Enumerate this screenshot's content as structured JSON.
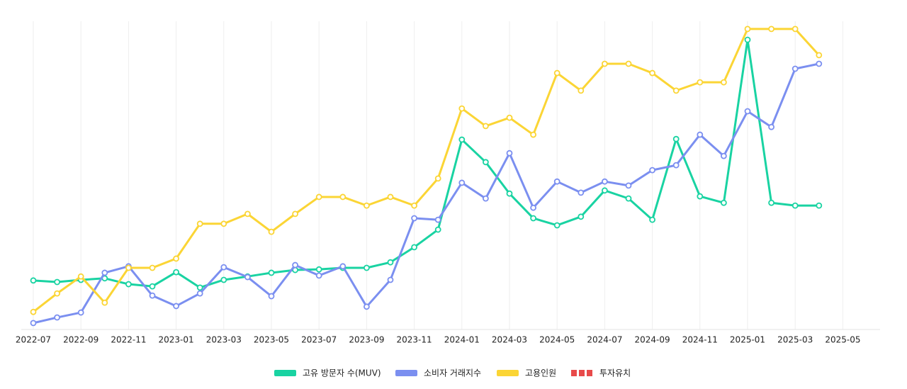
{
  "chart_data": {
    "type": "line",
    "categories": [
      "2022-07",
      null,
      "2022-09",
      null,
      "2022-11",
      null,
      "2023-01",
      null,
      "2023-03",
      null,
      "2023-05",
      null,
      "2023-07",
      null,
      "2023-09",
      null,
      "2023-11",
      null,
      "2024-01",
      null,
      "2024-03",
      null,
      "2024-05",
      null,
      "2024-07",
      null,
      "2024-09",
      null,
      "2024-11",
      null,
      "2025-01",
      null,
      "2025-03",
      null,
      "2025-05"
    ],
    "series": [
      {
        "name": "고유 방문자 수(MUV)",
        "color": "#19d3a2",
        "values": [
          15.9,
          15.4,
          16.1,
          16.6,
          14.7,
          14.0,
          18.6,
          13.6,
          16.1,
          17.2,
          18.4,
          19.3,
          19.5,
          20.0,
          20.0,
          21.8,
          26.7,
          32.4,
          61.6,
          54.3,
          44.1,
          36.1,
          33.8,
          36.6,
          45.1,
          42.5,
          35.6,
          61.8,
          43.2,
          41.1,
          94.0,
          41.1,
          40.2,
          40.2,
          null
        ]
      },
      {
        "name": "소비자 거래지수",
        "color": "#7b8ff0",
        "values": [
          2.1,
          3.9,
          5.5,
          18.4,
          20.5,
          11.0,
          7.6,
          11.7,
          20.2,
          17.0,
          10.8,
          20.9,
          17.5,
          20.5,
          7.4,
          16.1,
          36.1,
          35.6,
          47.6,
          42.5,
          57.2,
          39.5,
          48.0,
          44.4,
          48.0,
          46.7,
          51.7,
          53.3,
          63.2,
          56.3,
          70.8,
          65.7,
          84.6,
          86.2,
          null
        ]
      },
      {
        "name": "고용인원",
        "color": "#fbd535",
        "values": [
          5.7,
          11.7,
          17.2,
          8.7,
          20.0,
          20.0,
          23.0,
          34.3,
          34.3,
          37.5,
          31.7,
          37.5,
          43.0,
          43.0,
          40.2,
          43.0,
          40.2,
          49.0,
          71.7,
          66.0,
          68.7,
          63.2,
          83.2,
          77.5,
          86.2,
          86.2,
          83.2,
          77.5,
          80.2,
          80.2,
          97.5,
          97.5,
          97.5,
          89.0,
          null
        ]
      },
      {
        "name": "투자유치",
        "color": "#e84a4a",
        "values": [
          null,
          null,
          null,
          null,
          null,
          null,
          null,
          null,
          null,
          null,
          null,
          null,
          null,
          null,
          null,
          null,
          null,
          null,
          null,
          null,
          null,
          null,
          null,
          null,
          null,
          null,
          null,
          null,
          null,
          null,
          null,
          null,
          null,
          null,
          null
        ]
      }
    ],
    "ylim": [
      0,
      100
    ],
    "grid": true,
    "legend": "bottom"
  }
}
